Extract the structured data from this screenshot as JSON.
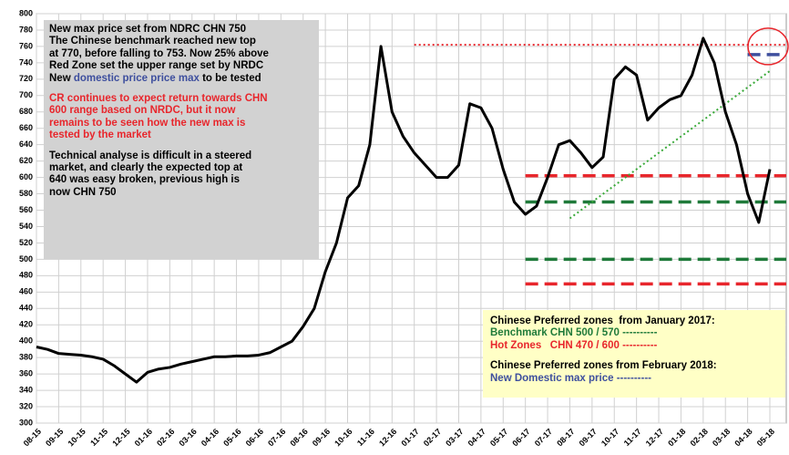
{
  "chart_data": {
    "type": "line",
    "categories": [
      "08-15",
      null,
      "09-15",
      null,
      "10-15",
      null,
      "11-15",
      null,
      "12-15",
      null,
      "01-16",
      null,
      "02-16",
      null,
      "03-16",
      null,
      "04-16",
      null,
      "05-16",
      null,
      "06-16",
      null,
      "07-16",
      null,
      "08-16",
      null,
      "09-16",
      null,
      "10-16",
      null,
      "11-16",
      null,
      "12-16",
      null,
      "01-17",
      null,
      "02-17",
      null,
      "03-17",
      null,
      "04-17",
      null,
      "05-17",
      null,
      "06-17",
      null,
      "07-17",
      null,
      "08-17",
      null,
      "09-17",
      null,
      "10-17",
      null,
      "11-17",
      null,
      "12-17",
      null,
      "01-18",
      null,
      "02-18",
      null,
      "03-18",
      null,
      "04-18",
      null,
      "05-18"
    ],
    "series": [
      {
        "color": "#000000",
        "values": [
          393,
          390,
          385,
          384,
          383,
          381,
          378,
          370,
          360,
          350,
          362,
          366,
          368,
          372,
          375,
          378,
          381,
          381,
          382,
          382,
          383,
          386,
          393,
          400,
          418,
          440,
          485,
          520,
          575,
          590,
          640,
          760,
          680,
          650,
          630,
          615,
          600,
          600,
          615,
          690,
          685,
          660,
          610,
          570,
          555,
          565,
          600,
          640,
          645,
          630,
          612,
          625,
          720,
          735,
          725,
          670,
          685,
          695,
          700,
          725,
          770,
          740,
          680,
          640,
          580,
          545,
          610
        ]
      }
    ],
    "ylim": [
      300,
      800
    ],
    "yticks": [
      300,
      320,
      340,
      360,
      380,
      400,
      420,
      440,
      460,
      480,
      500,
      520,
      540,
      560,
      580,
      600,
      620,
      640,
      660,
      680,
      700,
      720,
      740,
      760,
      780,
      800
    ],
    "grid": true,
    "reference_lines": [
      {
        "value": 762,
        "from": "01-17",
        "color": "#e8262c",
        "style": "dotted"
      },
      {
        "value": 750,
        "from": "04-18",
        "color": "#3e4f9e",
        "style": "dashed"
      },
      {
        "value": 602,
        "from": "06-17",
        "color": "#e8262c",
        "style": "dashed"
      },
      {
        "value": 570,
        "from": "06-17",
        "color": "#1f7a3a",
        "style": "dashed"
      },
      {
        "value": 500,
        "from": "06-17",
        "color": "#1f7a3a",
        "style": "dashed"
      },
      {
        "value": 470,
        "from": "06-17",
        "color": "#e8262c",
        "style": "dashed"
      }
    ],
    "trend_line": {
      "from": [
        "08-17",
        550
      ],
      "to": [
        "05-18",
        730
      ],
      "color": "#3aaa3a"
    },
    "annotations": [
      {
        "lines": [
          [
            {
              "text": "New max price set from NDRC CHN 750",
              "color": "#000000"
            }
          ],
          [
            {
              "text": "The Chinese benchmark reached new top",
              "color": "#000000"
            }
          ],
          [
            {
              "text": "at 770, before falling to 753. Now 25% above",
              "color": "#000000"
            }
          ],
          [
            {
              "text": "Red Zone set the upper range set by NRDC",
              "color": "#000000"
            }
          ],
          [
            {
              "text": "New ",
              "color": "#000000"
            },
            {
              "text": "domestic price price max",
              "color": "#3e4f9e"
            },
            {
              "text": " to be tested",
              "color": "#000000"
            }
          ],
          [
            {
              "text": "CR continues to expect return towards CHN",
              "color": "#e8262c"
            }
          ],
          [
            {
              "text": "600 range based on NRDC, but it now",
              "color": "#e8262c"
            }
          ],
          [
            {
              "text": "remains to be seen how the new max is",
              "color": "#e8262c"
            }
          ],
          [
            {
              "text": "tested by the market",
              "color": "#e8262c"
            }
          ],
          [
            {
              "text": "Technical analyse is difficult in a steered",
              "color": "#000000"
            }
          ],
          [
            {
              "text": "market, and clearly the expected top at",
              "color": "#000000"
            }
          ],
          [
            {
              "text": "640 was easy broken, previous high is",
              "color": "#000000"
            }
          ],
          [
            {
              "text": "now CHN 750",
              "color": "#000000"
            }
          ]
        ]
      },
      {
        "lines": [
          [
            {
              "text": "Chinese Preferred zones  from January 2017:",
              "color": "#000000"
            }
          ],
          [
            {
              "text": "Benchmark CHN 500 / 570 ----------",
              "color": "#1f7a3a"
            }
          ],
          [
            {
              "text": "Hot Zones   CHN 470 / 600 ----------",
              "color": "#e8262c"
            }
          ],
          [
            {
              "text": "Chinese Preferred zones from February 2018:",
              "color": "#000000"
            }
          ],
          [
            {
              "text": "New Domestic max price ----------",
              "color": "#3e4f9e"
            }
          ]
        ]
      }
    ]
  }
}
